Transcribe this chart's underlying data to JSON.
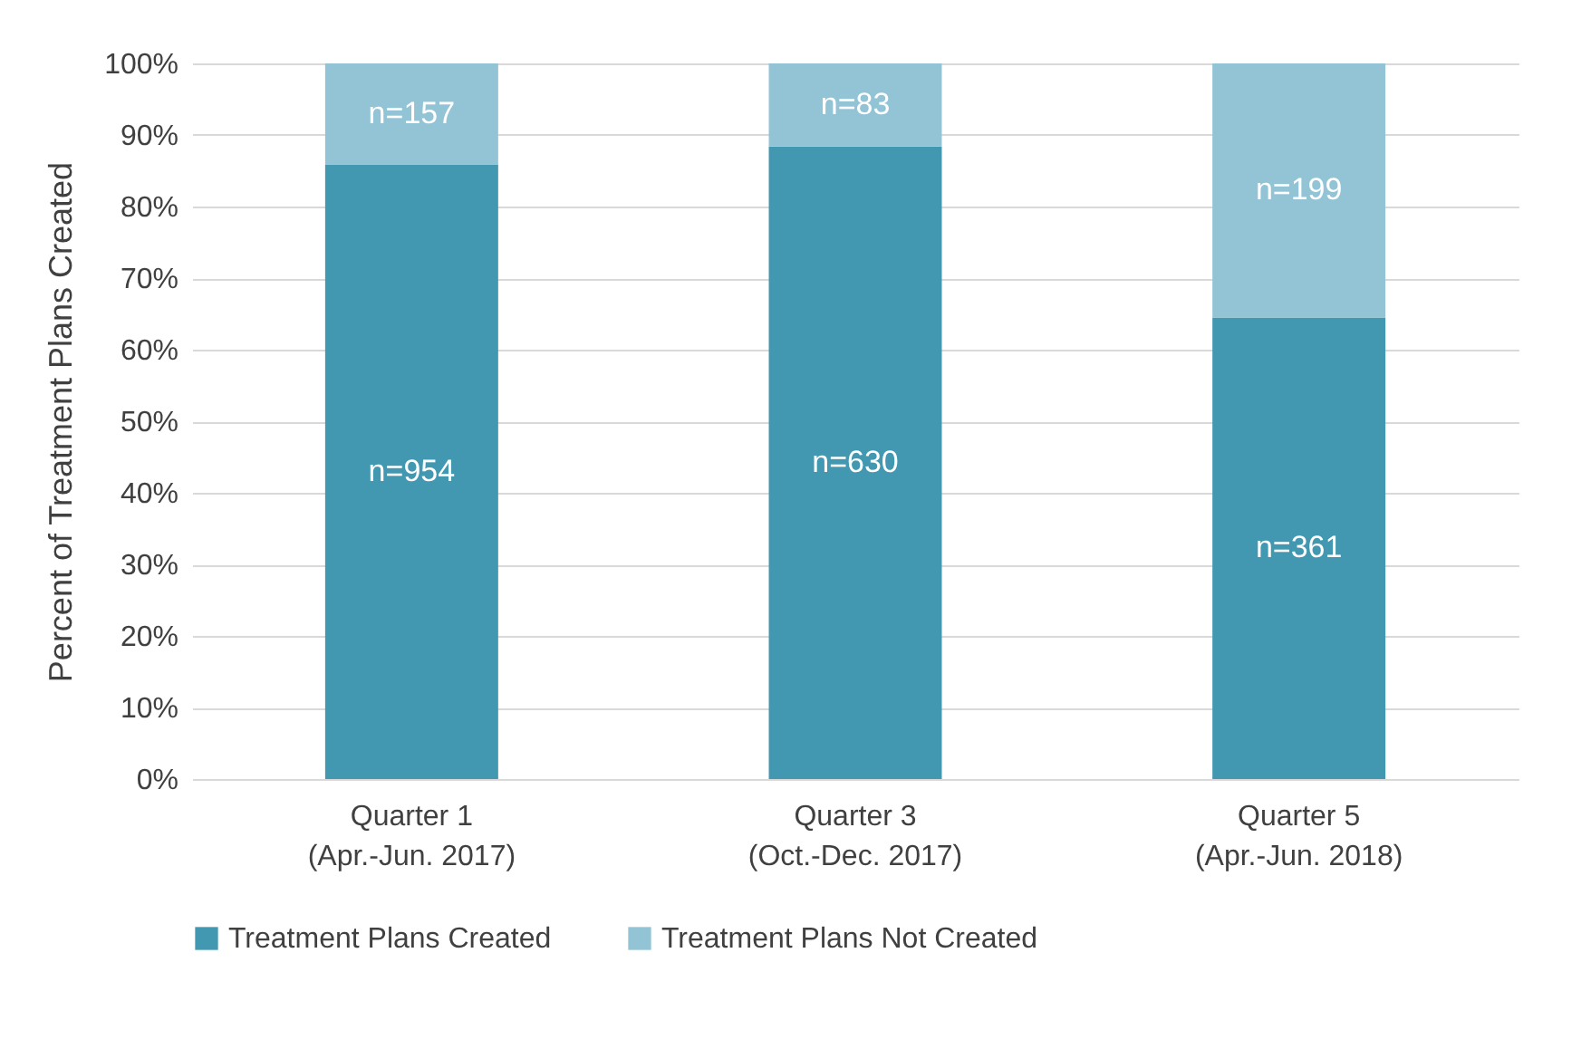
{
  "chart_data": {
    "type": "bar",
    "stacked": true,
    "ylabel": "Percent of Treatment Plans Created",
    "categories": [
      "Quarter 1\n(Apr.-Jun. 2017)",
      "Quarter 3\n(Oct.-Dec. 2017)",
      "Quarter 5\n(Apr.-Jun. 2018)"
    ],
    "series": [
      {
        "name": "Treatment Plans Created",
        "color": "#4198b0",
        "values": [
          85.9,
          88.4,
          64.5
        ]
      },
      {
        "name": "Treatment Plans Not Created",
        "color": "#92c4d6",
        "values": [
          14.1,
          11.6,
          35.5
        ]
      }
    ],
    "annotations": [
      "n=954",
      "n=630",
      "n=361",
      "n=157",
      "n=83",
      "n=199"
    ],
    "ylim": [
      0,
      100
    ],
    "yticks": [
      {
        "value": 0,
        "label": "0%"
      },
      {
        "value": 10,
        "label": "10%"
      },
      {
        "value": 20,
        "label": "20%"
      },
      {
        "value": 30,
        "label": "30%"
      },
      {
        "value": 40,
        "label": "40%"
      },
      {
        "value": 50,
        "label": "50%"
      },
      {
        "value": 60,
        "label": "60%"
      },
      {
        "value": 70,
        "label": "70%"
      },
      {
        "value": 80,
        "label": "80%"
      },
      {
        "value": 90,
        "label": "90%"
      },
      {
        "value": 100,
        "label": "100%"
      }
    ],
    "grid": "y",
    "legend": "bottom"
  }
}
